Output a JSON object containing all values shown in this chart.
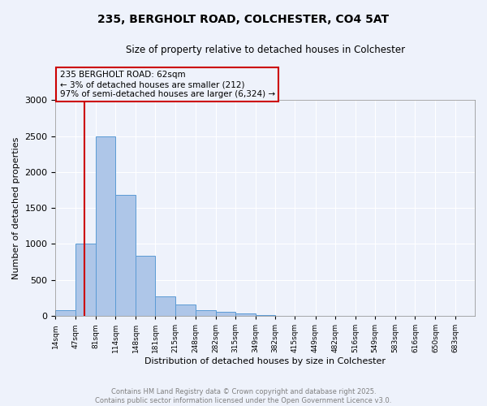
{
  "title_line1": "235, BERGHOLT ROAD, COLCHESTER, CO4 5AT",
  "title_line2": "Size of property relative to detached houses in Colchester",
  "xlabel": "Distribution of detached houses by size in Colchester",
  "ylabel": "Number of detached properties",
  "bar_color": "#aec6e8",
  "bar_edge_color": "#5b9bd5",
  "annotation_box_color": "#cc0000",
  "annotation_text": "235 BERGHOLT ROAD: 62sqm\n← 3% of detached houses are smaller (212)\n97% of semi-detached houses are larger (6,324) →",
  "property_line_x": 62,
  "categories": [
    "14sqm",
    "47sqm",
    "81sqm",
    "114sqm",
    "148sqm",
    "181sqm",
    "215sqm",
    "248sqm",
    "282sqm",
    "315sqm",
    "349sqm",
    "382sqm",
    "415sqm",
    "449sqm",
    "482sqm",
    "516sqm",
    "549sqm",
    "583sqm",
    "616sqm",
    "650sqm",
    "683sqm"
  ],
  "bin_edges": [
    14,
    47,
    81,
    114,
    148,
    181,
    215,
    248,
    282,
    315,
    349,
    382,
    415,
    449,
    482,
    516,
    549,
    583,
    616,
    650,
    683,
    716
  ],
  "bar_heights": [
    75,
    1010,
    2500,
    1680,
    840,
    270,
    155,
    75,
    55,
    35,
    10,
    5,
    0,
    0,
    0,
    0,
    0,
    0,
    0,
    0,
    0
  ],
  "ylim": [
    0,
    3000
  ],
  "yticks": [
    0,
    500,
    1000,
    1500,
    2000,
    2500,
    3000
  ],
  "background_color": "#eef2fb",
  "grid_color": "#ffffff",
  "footer_line1": "Contains HM Land Registry data © Crown copyright and database right 2025.",
  "footer_line2": "Contains public sector information licensed under the Open Government Licence v3.0."
}
